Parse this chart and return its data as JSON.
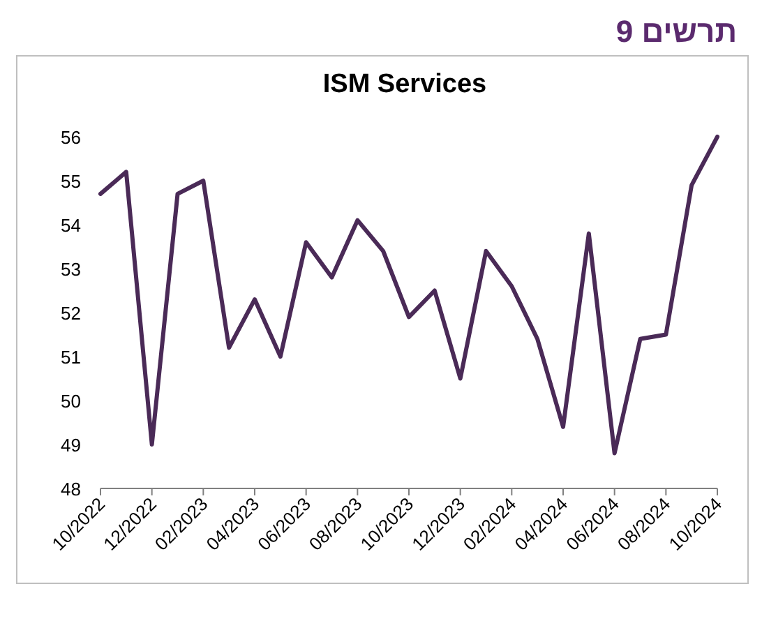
{
  "chart_data": {
    "type": "line",
    "title": "ISM Services",
    "annotations": [
      "תרשים 9"
    ],
    "x": [
      "2022-10",
      "2022-11",
      "2022-12",
      "2023-01",
      "2023-02",
      "2023-03",
      "2023-04",
      "2023-05",
      "2023-06",
      "2023-07",
      "2023-08",
      "2023-09",
      "2023-10",
      "2023-11",
      "2023-12",
      "2024-01",
      "2024-02",
      "2024-03",
      "2024-04",
      "2024-05",
      "2024-06",
      "2024-07",
      "2024-08",
      "2024-09",
      "2024-10"
    ],
    "series": [
      {
        "color": "#4a2a57",
        "values": [
          54.7,
          55.2,
          49.0,
          54.7,
          55.0,
          51.2,
          52.3,
          51.0,
          53.6,
          52.8,
          54.1,
          53.4,
          51.9,
          52.5,
          50.5,
          53.4,
          52.6,
          51.4,
          49.4,
          53.8,
          48.8,
          51.4,
          51.5,
          54.9,
          56.0
        ]
      }
    ],
    "xlim": [
      "2022-10",
      "2024-10"
    ],
    "xticks": [
      {
        "value": "2022-10",
        "label": "10/2022"
      },
      {
        "value": "2022-12",
        "label": "12/2022"
      },
      {
        "value": "2023-02",
        "label": "02/2023"
      },
      {
        "value": "2023-04",
        "label": "04/2023"
      },
      {
        "value": "2023-06",
        "label": "06/2023"
      },
      {
        "value": "2023-08",
        "label": "08/2023"
      },
      {
        "value": "2023-10",
        "label": "10/2023"
      },
      {
        "value": "2023-12",
        "label": "12/2023"
      },
      {
        "value": "2024-02",
        "label": "02/2024"
      },
      {
        "value": "2024-04",
        "label": "04/2024"
      },
      {
        "value": "2024-06",
        "label": "06/2024"
      },
      {
        "value": "2024-08",
        "label": "08/2024"
      },
      {
        "value": "2024-10",
        "label": "10/2024"
      }
    ],
    "ylim": [
      48,
      56
    ],
    "yticks": [
      48,
      49,
      50,
      51,
      52,
      53,
      54,
      55,
      56
    ],
    "grid": false,
    "marker": "none",
    "line_style": "solid"
  }
}
